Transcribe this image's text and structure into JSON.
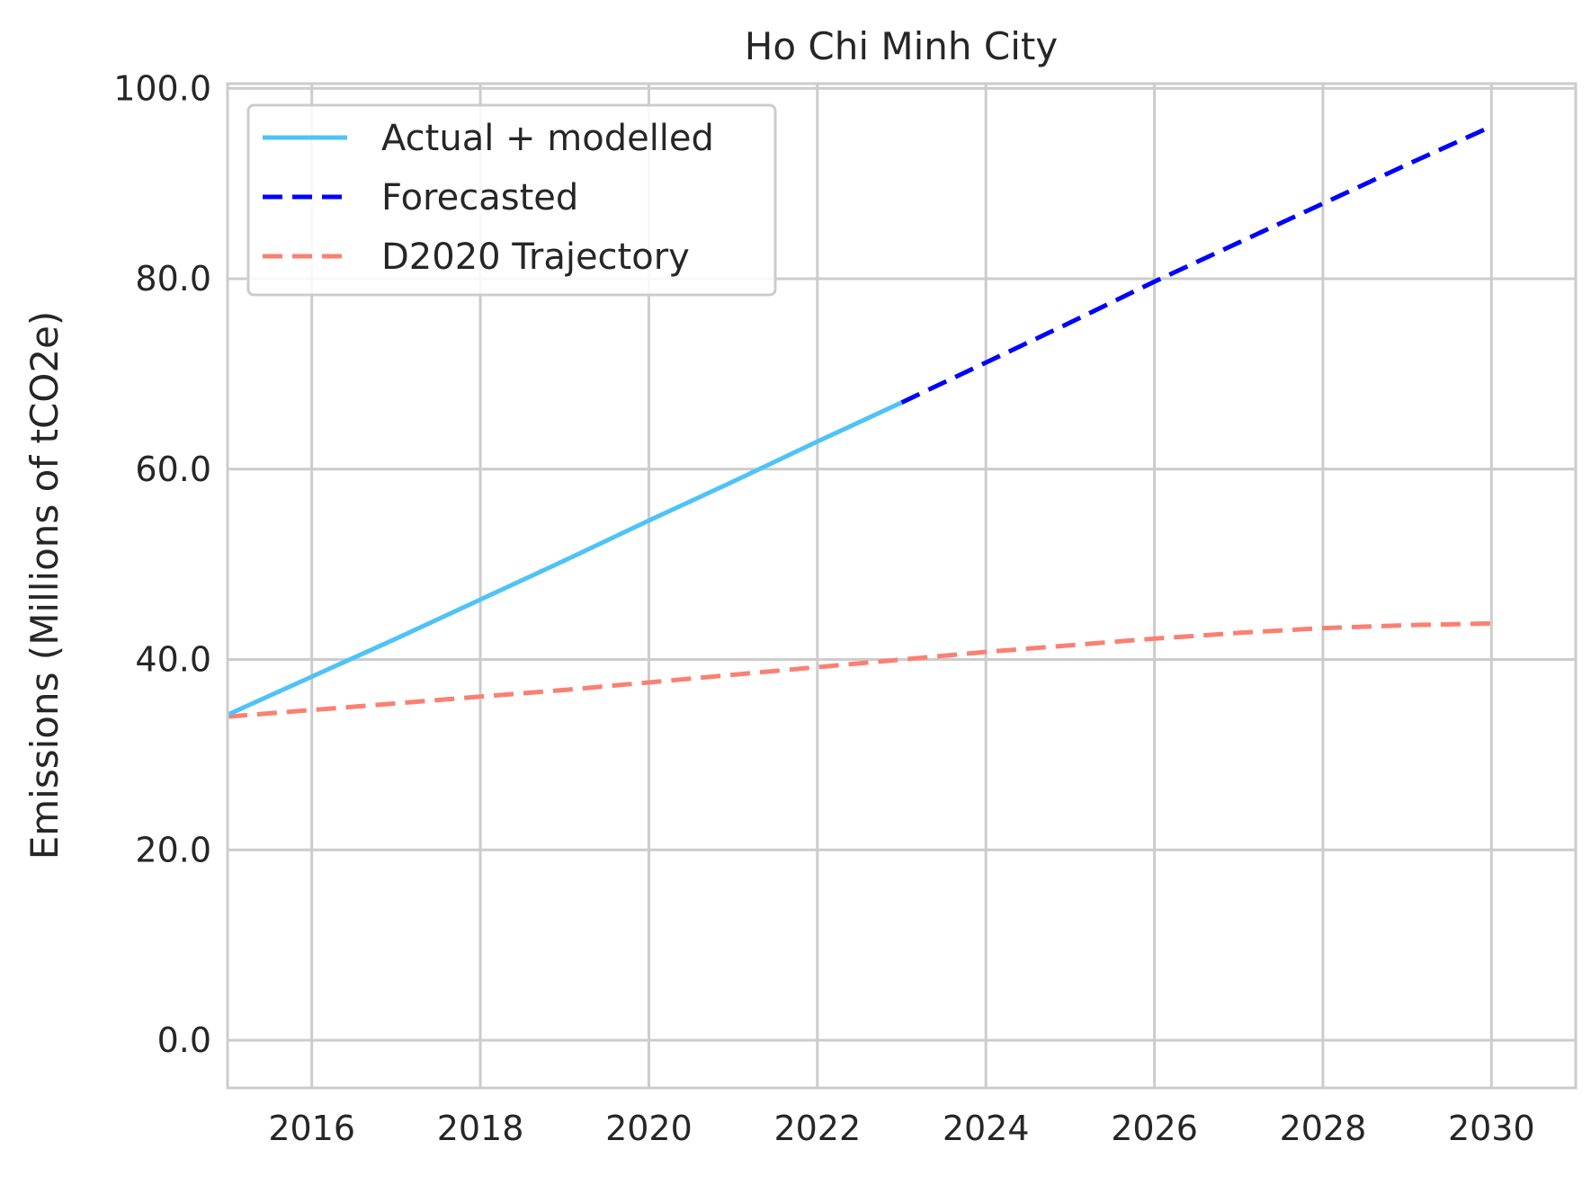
{
  "chart_data": {
    "type": "line",
    "title": "Ho Chi Minh City",
    "xlabel": "",
    "ylabel": "Emissions (Millions of tCO2e)",
    "xlim": [
      2015,
      2031
    ],
    "ylim": [
      -5,
      100.5
    ],
    "x_ticks": [
      2016,
      2018,
      2020,
      2022,
      2024,
      2026,
      2028,
      2030
    ],
    "x_tick_labels": [
      "2016",
      "2018",
      "2020",
      "2022",
      "2024",
      "2026",
      "2028",
      "2030"
    ],
    "y_ticks": [
      0,
      20,
      40,
      60,
      80,
      100
    ],
    "y_tick_labels": [
      "0.0",
      "20.0",
      "40.0",
      "60.0",
      "80.0",
      "100.0"
    ],
    "grid": true,
    "legend_position": "top-left",
    "series": [
      {
        "name": "Actual + modelled",
        "color": "#4fc3f7",
        "dash": "solid",
        "x": [
          2015,
          2016,
          2017,
          2018,
          2019,
          2020,
          2021,
          2022,
          2023
        ],
        "y": [
          34.2,
          38.2,
          42.2,
          46.3,
          50.4,
          54.6,
          58.7,
          62.9,
          67.0
        ]
      },
      {
        "name": "Forecasted",
        "color": "#0000ff",
        "dash": "dashed",
        "x": [
          2023,
          2024,
          2025,
          2026,
          2027,
          2028,
          2029,
          2030
        ],
        "y": [
          67.0,
          71.2,
          75.4,
          79.7,
          83.8,
          87.9,
          92.0,
          96.0
        ]
      },
      {
        "name": "D2020 Trajectory",
        "color": "#fa8072",
        "dash": "dashed",
        "x": [
          2015,
          2016,
          2017,
          2018,
          2019,
          2020,
          2021,
          2022,
          2023,
          2024,
          2025,
          2026,
          2027,
          2028,
          2029,
          2030
        ],
        "y": [
          34.0,
          34.7,
          35.4,
          36.1,
          36.8,
          37.6,
          38.4,
          39.2,
          40.0,
          40.8,
          41.5,
          42.2,
          42.8,
          43.3,
          43.6,
          43.8
        ]
      }
    ]
  }
}
